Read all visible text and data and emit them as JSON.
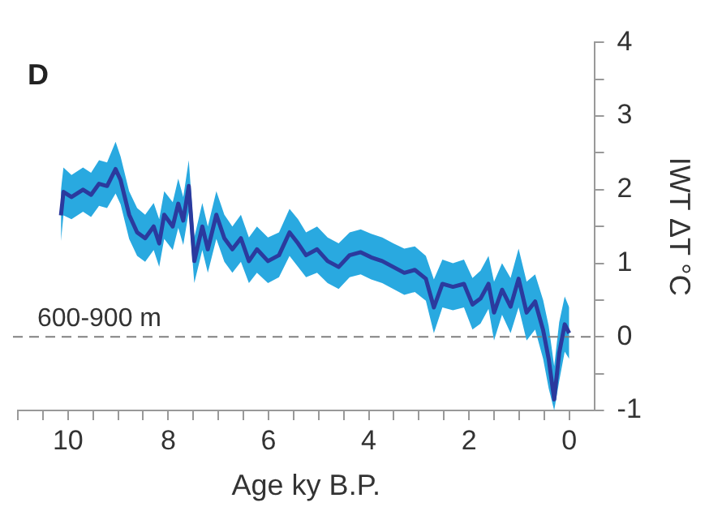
{
  "chart_data": {
    "type": "line",
    "annotations": [
      "D"
    ],
    "xlabel": "Age ky B.P.",
    "ylabel": "IWT ΔT °C",
    "xlim": [
      11,
      -0.5
    ],
    "xticks": [
      {
        "value": 11,
        "label": null
      },
      {
        "value": 10.5,
        "label": null
      },
      10,
      {
        "value": 9.5,
        "label": null
      },
      {
        "value": 9,
        "label": null
      },
      {
        "value": 8.5,
        "label": null
      },
      8,
      {
        "value": 7.5,
        "label": null
      },
      {
        "value": 7,
        "label": null
      },
      {
        "value": 6.5,
        "label": null
      },
      6,
      {
        "value": 5.5,
        "label": null
      },
      {
        "value": 5,
        "label": null
      },
      {
        "value": 4.5,
        "label": null
      },
      4,
      {
        "value": 3.5,
        "label": null
      },
      {
        "value": 3,
        "label": null
      },
      {
        "value": 2.5,
        "label": null
      },
      2,
      {
        "value": 1.5,
        "label": null
      },
      {
        "value": 1,
        "label": null
      },
      {
        "value": 0.5,
        "label": null
      },
      0
    ],
    "ylim": [
      -1,
      4
    ],
    "yticks": [
      -1,
      {
        "value": -0.5,
        "label": null
      },
      0,
      {
        "value": 0.5,
        "label": null
      },
      1,
      {
        "value": 1.5,
        "label": null
      },
      2,
      {
        "value": 2.5,
        "label": null
      },
      3,
      {
        "value": 3.5,
        "label": null
      },
      4
    ],
    "marker": "none",
    "ref_lines": [
      {
        "axis": "y",
        "value": 0,
        "label": "600-900 m",
        "color": "#808080",
        "line_style": "dashed"
      }
    ],
    "series": [
      {
        "color": "#2b3a9e",
        "x": [
          10.14,
          10.09,
          9.93,
          9.7,
          9.54,
          9.38,
          9.22,
          9.05,
          8.95,
          8.78,
          8.62,
          8.46,
          8.29,
          8.18,
          8.08,
          7.91,
          7.8,
          7.7,
          7.59,
          7.48,
          7.32,
          7.21,
          7.04,
          6.88,
          6.72,
          6.55,
          6.39,
          6.23,
          6.01,
          5.79,
          5.58,
          5.41,
          5.25,
          5.03,
          4.82,
          4.6,
          4.38,
          4.16,
          3.95,
          3.73,
          3.51,
          3.29,
          3.08,
          2.86,
          2.7,
          2.53,
          2.32,
          2.1,
          1.93,
          1.77,
          1.61,
          1.5,
          1.34,
          1.17,
          1.01,
          0.85,
          0.68,
          0.52,
          0.41,
          0.3,
          0.2,
          0.09,
          0.0
        ],
        "values": [
          1.65,
          1.97,
          1.9,
          2.0,
          1.93,
          2.08,
          2.05,
          2.28,
          2.13,
          1.66,
          1.42,
          1.34,
          1.5,
          1.27,
          1.66,
          1.5,
          1.81,
          1.58,
          2.05,
          1.03,
          1.5,
          1.19,
          1.66,
          1.34,
          1.19,
          1.34,
          1.03,
          1.19,
          1.03,
          1.11,
          1.42,
          1.27,
          1.11,
          1.19,
          1.03,
          0.95,
          1.11,
          1.15,
          1.08,
          1.03,
          0.95,
          0.87,
          0.91,
          0.79,
          0.4,
          0.72,
          0.68,
          0.72,
          0.44,
          0.52,
          0.72,
          0.33,
          0.64,
          0.41,
          0.79,
          0.33,
          0.48,
          0.09,
          -0.3,
          -0.85,
          -0.22,
          0.17,
          0.05
        ],
        "lower": [
          1.3,
          1.65,
          1.6,
          1.7,
          1.63,
          1.78,
          1.75,
          1.95,
          1.8,
          1.33,
          1.1,
          1.02,
          1.18,
          0.95,
          1.33,
          1.18,
          1.48,
          1.25,
          1.7,
          0.73,
          1.18,
          0.87,
          1.33,
          1.02,
          0.87,
          1.02,
          0.73,
          0.87,
          0.73,
          0.81,
          1.1,
          0.95,
          0.81,
          0.87,
          0.73,
          0.65,
          0.81,
          0.85,
          0.78,
          0.73,
          0.65,
          0.57,
          0.61,
          0.49,
          0.05,
          0.4,
          0.36,
          0.4,
          0.1,
          0.18,
          0.38,
          -0.05,
          0.3,
          0.05,
          0.4,
          -0.05,
          0.1,
          -0.3,
          -0.7,
          -1.0,
          -0.6,
          -0.2,
          -0.3
        ],
        "upper": [
          2.0,
          2.3,
          2.2,
          2.3,
          2.23,
          2.4,
          2.37,
          2.65,
          2.45,
          1.98,
          1.75,
          1.66,
          1.82,
          1.6,
          1.98,
          1.83,
          2.15,
          1.9,
          2.4,
          1.35,
          1.82,
          1.5,
          1.98,
          1.66,
          1.5,
          1.66,
          1.35,
          1.5,
          1.35,
          1.42,
          1.74,
          1.6,
          1.42,
          1.5,
          1.35,
          1.27,
          1.42,
          1.46,
          1.4,
          1.35,
          1.27,
          1.2,
          1.23,
          1.1,
          0.78,
          1.05,
          1.0,
          1.05,
          0.8,
          0.9,
          1.1,
          0.75,
          1.0,
          0.8,
          1.2,
          0.75,
          0.85,
          0.5,
          0.15,
          -0.4,
          0.2,
          0.55,
          0.4
        ]
      }
    ]
  }
}
